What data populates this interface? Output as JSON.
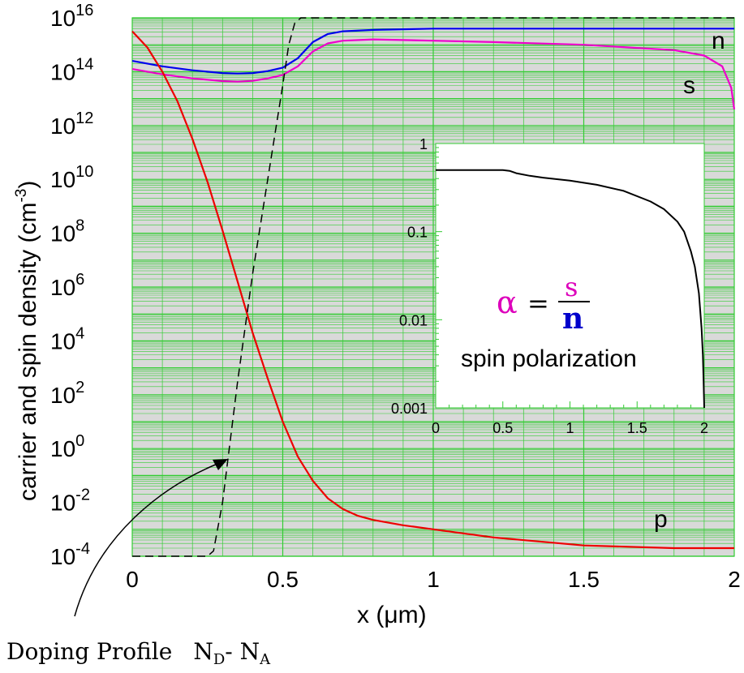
{
  "colors": {
    "grid": "#33cc33",
    "plot_bg": "#d9d9d9",
    "n": "#0000ee",
    "s": "#ee00cc",
    "p": "#ee0000",
    "doping": "#000000",
    "alpha": "#dd00bb",
    "spin_label": "#660044"
  },
  "chart_data": [
    {
      "type": "line",
      "xlabel": "x (μm)",
      "ylabel": "carrier and spin density (cm⁻³)",
      "ylabel_parts": {
        "main": "carrier and spin density (cm",
        "sup": "-3",
        "end": ")"
      },
      "y_scale": "log",
      "xlim": [
        0,
        2
      ],
      "ylim_exp": [
        -4,
        16
      ],
      "x_ticks": [
        "0",
        "0.5",
        "1",
        "1.5",
        "2"
      ],
      "y_tick_exponents": [
        "-4",
        "-2",
        "0",
        "2",
        "4",
        "6",
        "8",
        "10",
        "12",
        "14",
        "16"
      ],
      "grid": true,
      "series": [
        {
          "name": "n",
          "x": [
            0,
            0.1,
            0.2,
            0.3,
            0.35,
            0.4,
            0.45,
            0.5,
            0.55,
            0.6,
            0.65,
            0.7,
            0.8,
            1.0,
            1.5,
            2.0
          ],
          "log10_y": [
            14.4,
            14.2,
            14.05,
            13.95,
            13.93,
            13.95,
            14.02,
            14.15,
            14.5,
            15.1,
            15.4,
            15.5,
            15.55,
            15.6,
            15.6,
            15.6
          ]
        },
        {
          "name": "s",
          "x": [
            0,
            0.1,
            0.2,
            0.3,
            0.35,
            0.4,
            0.45,
            0.5,
            0.55,
            0.6,
            0.65,
            0.7,
            0.8,
            1.0,
            1.2,
            1.5,
            1.8,
            1.9,
            1.96,
            1.99,
            2.0
          ],
          "log10_y": [
            14.1,
            13.9,
            13.75,
            13.65,
            13.63,
            13.66,
            13.75,
            13.88,
            14.2,
            14.75,
            15.05,
            15.15,
            15.2,
            15.15,
            15.1,
            15.0,
            14.8,
            14.6,
            14.2,
            13.4,
            12.6
          ]
        },
        {
          "name": "p",
          "x": [
            0,
            0.05,
            0.1,
            0.15,
            0.2,
            0.25,
            0.3,
            0.35,
            0.4,
            0.45,
            0.5,
            0.55,
            0.6,
            0.65,
            0.7,
            0.75,
            0.8,
            0.9,
            1.0,
            1.2,
            1.5,
            1.8,
            2.0
          ],
          "log10_y": [
            15.5,
            14.9,
            14.0,
            12.9,
            11.5,
            9.9,
            8.1,
            6.2,
            4.3,
            2.6,
            1.0,
            -0.3,
            -1.2,
            -1.85,
            -2.25,
            -2.5,
            -2.65,
            -2.85,
            -3.0,
            -3.3,
            -3.6,
            -3.7,
            -3.7
          ]
        },
        {
          "name": "doping",
          "x": [
            0,
            0.25,
            0.27,
            0.3,
            0.35,
            0.4,
            0.45,
            0.5,
            0.52,
            0.54,
            0.56,
            0.6,
            1.0,
            2.0
          ],
          "log10_y": [
            -4,
            -4,
            -3.8,
            -2.0,
            2.5,
            6.5,
            10.0,
            13.5,
            15.0,
            15.8,
            16.0,
            16.0,
            16.0,
            16.0
          ]
        }
      ],
      "labels": {
        "n": "n",
        "s": "s",
        "p": "p"
      },
      "annotation": {
        "doping_main": "Doping Profile",
        "nd": "N",
        "nd_sub": "D",
        "dash": "- ",
        "na": "N",
        "na_sub": "A"
      }
    },
    {
      "type": "line",
      "y_scale": "log",
      "xlim": [
        0,
        2
      ],
      "ylim": [
        0.001,
        1
      ],
      "x_ticks": [
        "0",
        "0.5",
        "1",
        "1.5",
        "2"
      ],
      "y_ticks": [
        "1",
        "0.1",
        "0.01",
        "0.001"
      ],
      "series": [
        {
          "x": [
            0,
            0.3,
            0.5,
            0.55,
            0.6,
            0.7,
            0.8,
            1.0,
            1.2,
            1.4,
            1.6,
            1.7,
            1.8,
            1.85,
            1.9,
            1.93,
            1.96,
            1.98,
            1.99,
            1.995,
            2.0
          ],
          "y": [
            0.5,
            0.5,
            0.5,
            0.49,
            0.46,
            0.43,
            0.41,
            0.38,
            0.34,
            0.29,
            0.22,
            0.18,
            0.13,
            0.1,
            0.06,
            0.04,
            0.02,
            0.008,
            0.004,
            0.002,
            0.001
          ]
        }
      ],
      "formula": {
        "alpha": "α",
        "equals": "=",
        "num": "s",
        "den": "n"
      },
      "spin_label": "spin polarization"
    }
  ]
}
